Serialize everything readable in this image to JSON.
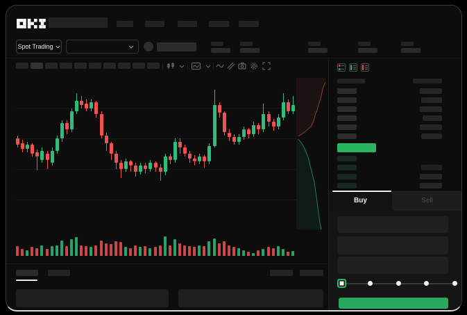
{
  "app": {
    "logo_text": "OKX"
  },
  "header": {
    "market_selector_label": "Spot Trading"
  },
  "order_panel": {
    "buy_tab_label": "Buy",
    "sell_tab_label": "Sell",
    "slider": {
      "active_stop_index": 0,
      "stop_count": 5
    }
  },
  "colors": {
    "accent_green": "#2ab561",
    "buy_button_green": "#28a85c",
    "candle_up": "#2ebd7d",
    "candle_down": "#ee5350",
    "background": "#0d0d0d"
  },
  "chart_data": {
    "type": "candlestick",
    "title": "",
    "axes": {
      "price_labels_visible": false,
      "time_labels_visible": false,
      "gridlines": "horizontal-faint"
    },
    "price_scale": {
      "min": 0,
      "max": 100,
      "unit": "normalized"
    },
    "candles": [
      [
        60,
        56,
        62,
        54
      ],
      [
        57,
        53,
        59,
        51
      ],
      [
        53,
        56,
        58,
        51
      ],
      [
        56,
        50,
        57,
        48
      ],
      [
        51,
        48,
        53,
        39
      ],
      [
        46,
        52,
        54,
        44
      ],
      [
        50,
        46,
        52,
        40
      ],
      [
        44,
        52,
        54,
        42
      ],
      [
        52,
        60,
        62,
        50
      ],
      [
        60,
        70,
        72,
        58
      ],
      [
        70,
        66,
        72,
        63
      ],
      [
        66,
        78,
        80,
        64
      ],
      [
        78,
        85,
        90,
        76
      ],
      [
        85,
        82,
        88,
        80
      ],
      [
        83,
        80,
        86,
        78
      ],
      [
        80,
        84,
        86,
        78
      ],
      [
        84,
        76,
        85,
        74
      ],
      [
        76,
        62,
        78,
        60
      ],
      [
        62,
        57,
        64,
        52
      ],
      [
        57,
        50,
        58,
        46
      ],
      [
        50,
        44,
        52,
        40
      ],
      [
        44,
        40,
        46,
        34
      ],
      [
        40,
        45,
        47,
        38
      ],
      [
        45,
        42,
        46,
        38
      ],
      [
        42,
        38,
        44,
        35
      ],
      [
        38,
        42,
        44,
        36
      ],
      [
        42,
        40,
        44,
        37
      ],
      [
        40,
        44,
        46,
        38
      ],
      [
        44,
        41,
        45,
        38
      ],
      [
        41,
        38,
        43,
        32
      ],
      [
        38,
        48,
        50,
        36
      ],
      [
        48,
        46,
        50,
        43
      ],
      [
        46,
        58,
        60,
        44
      ],
      [
        58,
        54,
        60,
        50
      ],
      [
        54,
        50,
        56,
        48
      ],
      [
        50,
        47,
        52,
        44
      ],
      [
        47,
        45,
        49,
        42
      ],
      [
        45,
        48,
        50,
        43
      ],
      [
        48,
        45,
        49,
        41
      ],
      [
        45,
        55,
        57,
        43
      ],
      [
        55,
        82,
        92,
        54
      ],
      [
        82,
        77,
        84,
        74
      ],
      [
        77,
        64,
        78,
        62
      ],
      [
        64,
        61,
        66,
        58
      ],
      [
        61,
        58,
        63,
        56
      ],
      [
        58,
        61,
        63,
        56
      ],
      [
        61,
        66,
        68,
        59
      ],
      [
        66,
        63,
        67,
        60
      ],
      [
        63,
        69,
        71,
        61
      ],
      [
        69,
        66,
        70,
        63
      ],
      [
        66,
        76,
        83,
        64
      ],
      [
        76,
        71,
        78,
        68
      ],
      [
        71,
        68,
        73,
        65
      ],
      [
        68,
        74,
        76,
        66
      ],
      [
        74,
        84,
        90,
        72
      ],
      [
        84,
        78,
        86,
        76
      ],
      [
        78,
        82,
        88,
        76
      ]
    ],
    "volumes": [
      0.5,
      0.35,
      0.3,
      0.45,
      0.4,
      0.55,
      0.35,
      0.5,
      0.55,
      0.8,
      0.5,
      0.85,
      0.95,
      0.55,
      0.5,
      0.45,
      0.55,
      0.8,
      0.65,
      0.6,
      0.75,
      0.7,
      0.45,
      0.4,
      0.55,
      0.45,
      0.5,
      0.4,
      0.45,
      0.55,
      1.0,
      0.55,
      0.85,
      0.65,
      0.55,
      0.5,
      0.45,
      0.55,
      0.5,
      0.75,
      0.9,
      0.65,
      0.75,
      0.55,
      0.45,
      0.4,
      0.3,
      0.2,
      0.15,
      0.3,
      0.35,
      0.45,
      0.4,
      0.5,
      0.35,
      0.2,
      0.25
    ],
    "depth_sidebar": {
      "asks_line": [
        [
          42,
          6
        ],
        [
          38,
          16
        ],
        [
          36,
          26
        ],
        [
          33,
          36
        ],
        [
          30,
          46
        ],
        [
          27,
          54
        ],
        [
          25,
          62
        ],
        [
          21,
          70
        ],
        [
          12,
          78
        ],
        [
          3,
          84
        ]
      ],
      "bids_line": [
        [
          3,
          88
        ],
        [
          9,
          96
        ],
        [
          13,
          104
        ],
        [
          17,
          114
        ],
        [
          20,
          126
        ],
        [
          23,
          138
        ],
        [
          26,
          150
        ],
        [
          28,
          164
        ],
        [
          30,
          178
        ],
        [
          32,
          194
        ],
        [
          34,
          208
        ],
        [
          36,
          218
        ]
      ],
      "asks_color": "#ee5350",
      "bids_color": "#2ebd7d"
    },
    "legend": [],
    "annotations": []
  }
}
